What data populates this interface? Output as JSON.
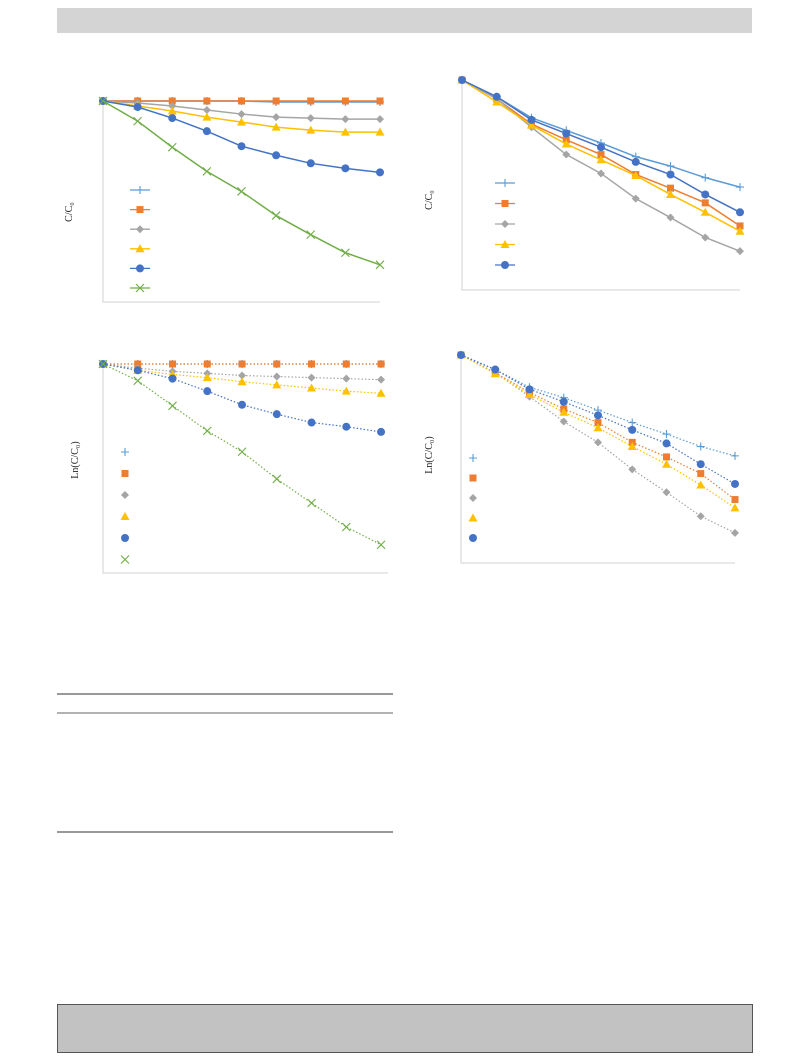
{
  "chart_data": [
    {
      "type": "line",
      "style": "solid",
      "y_label": "C/C₀",
      "x": [
        0,
        1,
        2,
        3,
        4,
        5,
        6,
        7,
        8
      ],
      "xlim": [
        0,
        8
      ],
      "ylim": [
        0,
        1
      ],
      "series": [
        {
          "color": "#5b9bd5",
          "marker": "plus",
          "values": [
            1,
            1,
            1,
            1,
            1,
            0.995,
            0.995,
            0.995,
            0.995
          ]
        },
        {
          "color": "#ed7d31",
          "marker": "square",
          "values": [
            1,
            1,
            1,
            1,
            1,
            1,
            1,
            1,
            1
          ]
        },
        {
          "color": "#a5a5a5",
          "marker": "diamond",
          "values": [
            1,
            0.99,
            0.975,
            0.955,
            0.935,
            0.92,
            0.915,
            0.91,
            0.91
          ]
        },
        {
          "color": "#ffc000",
          "marker": "triangle",
          "values": [
            1,
            0.975,
            0.95,
            0.92,
            0.895,
            0.87,
            0.855,
            0.845,
            0.845
          ]
        },
        {
          "color": "#4472c4",
          "marker": "circle",
          "values": [
            1,
            0.97,
            0.915,
            0.85,
            0.775,
            0.73,
            0.69,
            0.665,
            0.645
          ]
        },
        {
          "color": "#70ad47",
          "marker": "x",
          "values": [
            1,
            0.9,
            0.77,
            0.65,
            0.55,
            0.43,
            0.335,
            0.245,
            0.185
          ]
        }
      ]
    },
    {
      "type": "line",
      "style": "solid",
      "y_label": "C/C₀",
      "x": [
        0,
        1,
        2,
        3,
        4,
        5,
        6,
        7,
        8
      ],
      "xlim": [
        0,
        8
      ],
      "ylim": [
        0,
        1
      ],
      "series": [
        {
          "color": "#5b9bd5",
          "marker": "plus",
          "values": [
            1,
            0.92,
            0.82,
            0.76,
            0.7,
            0.635,
            0.59,
            0.535,
            0.49
          ]
        },
        {
          "color": "#ed7d31",
          "marker": "square",
          "values": [
            1,
            0.91,
            0.79,
            0.715,
            0.645,
            0.55,
            0.485,
            0.415,
            0.305
          ]
        },
        {
          "color": "#a5a5a5",
          "marker": "diamond",
          "values": [
            1,
            0.91,
            0.775,
            0.645,
            0.555,
            0.435,
            0.345,
            0.25,
            0.185
          ]
        },
        {
          "color": "#ffc000",
          "marker": "triangle",
          "values": [
            1,
            0.895,
            0.785,
            0.695,
            0.62,
            0.545,
            0.455,
            0.37,
            0.28
          ]
        },
        {
          "color": "#4472c4",
          "marker": "circle",
          "values": [
            1,
            0.92,
            0.81,
            0.745,
            0.68,
            0.61,
            0.55,
            0.455,
            0.37
          ]
        }
      ]
    },
    {
      "type": "line",
      "style": "dotted",
      "y_label": "Ln(C/C₀)",
      "x": [
        0,
        1,
        2,
        3,
        4,
        5,
        6,
        7,
        8
      ],
      "xlim": [
        0,
        8.2
      ],
      "ylim": [
        -2,
        0
      ],
      "series": [
        {
          "color": "#5b9bd5",
          "marker": "plus",
          "values": [
            0,
            0,
            0,
            0,
            0,
            0,
            0,
            0,
            0
          ]
        },
        {
          "color": "#ed7d31",
          "marker": "square",
          "values": [
            0,
            0,
            0,
            0,
            0,
            0,
            0,
            0,
            0
          ]
        },
        {
          "color": "#a5a5a5",
          "marker": "diamond",
          "values": [
            0,
            -0.04,
            -0.07,
            -0.09,
            -0.11,
            -0.12,
            -0.13,
            -0.14,
            -0.15
          ]
        },
        {
          "color": "#ffc000",
          "marker": "triangle",
          "values": [
            0,
            -0.06,
            -0.1,
            -0.13,
            -0.17,
            -0.2,
            -0.23,
            -0.26,
            -0.28
          ]
        },
        {
          "color": "#4472c4",
          "marker": "circle",
          "values": [
            0,
            -0.06,
            -0.14,
            -0.26,
            -0.39,
            -0.48,
            -0.56,
            -0.6,
            -0.65
          ]
        },
        {
          "color": "#70ad47",
          "marker": "x",
          "values": [
            0,
            -0.16,
            -0.4,
            -0.64,
            -0.84,
            -1.1,
            -1.33,
            -1.56,
            -1.73
          ]
        }
      ]
    },
    {
      "type": "line",
      "style": "dotted",
      "y_label": "Ln(C/C₀)",
      "x": [
        0,
        1,
        2,
        3,
        4,
        5,
        6,
        7,
        8
      ],
      "xlim": [
        0,
        8
      ],
      "ylim": [
        -2,
        0
      ],
      "series": [
        {
          "color": "#5b9bd5",
          "marker": "plus",
          "values": [
            0,
            -0.14,
            -0.31,
            -0.41,
            -0.53,
            -0.65,
            -0.76,
            -0.88,
            -0.97
          ]
        },
        {
          "color": "#ed7d31",
          "marker": "square",
          "values": [
            0,
            -0.17,
            -0.36,
            -0.52,
            -0.65,
            -0.84,
            -0.98,
            -1.14,
            -1.39
          ]
        },
        {
          "color": "#a5a5a5",
          "marker": "diamond",
          "values": [
            0,
            -0.17,
            -0.4,
            -0.64,
            -0.84,
            -1.1,
            -1.32,
            -1.55,
            -1.71
          ]
        },
        {
          "color": "#ffc000",
          "marker": "triangle",
          "values": [
            0,
            -0.18,
            -0.38,
            -0.55,
            -0.7,
            -0.88,
            -1.05,
            -1.25,
            -1.47
          ]
        },
        {
          "color": "#4472c4",
          "marker": "circle",
          "values": [
            0,
            -0.14,
            -0.33,
            -0.45,
            -0.58,
            -0.72,
            -0.85,
            -1.05,
            -1.24
          ]
        }
      ]
    }
  ]
}
